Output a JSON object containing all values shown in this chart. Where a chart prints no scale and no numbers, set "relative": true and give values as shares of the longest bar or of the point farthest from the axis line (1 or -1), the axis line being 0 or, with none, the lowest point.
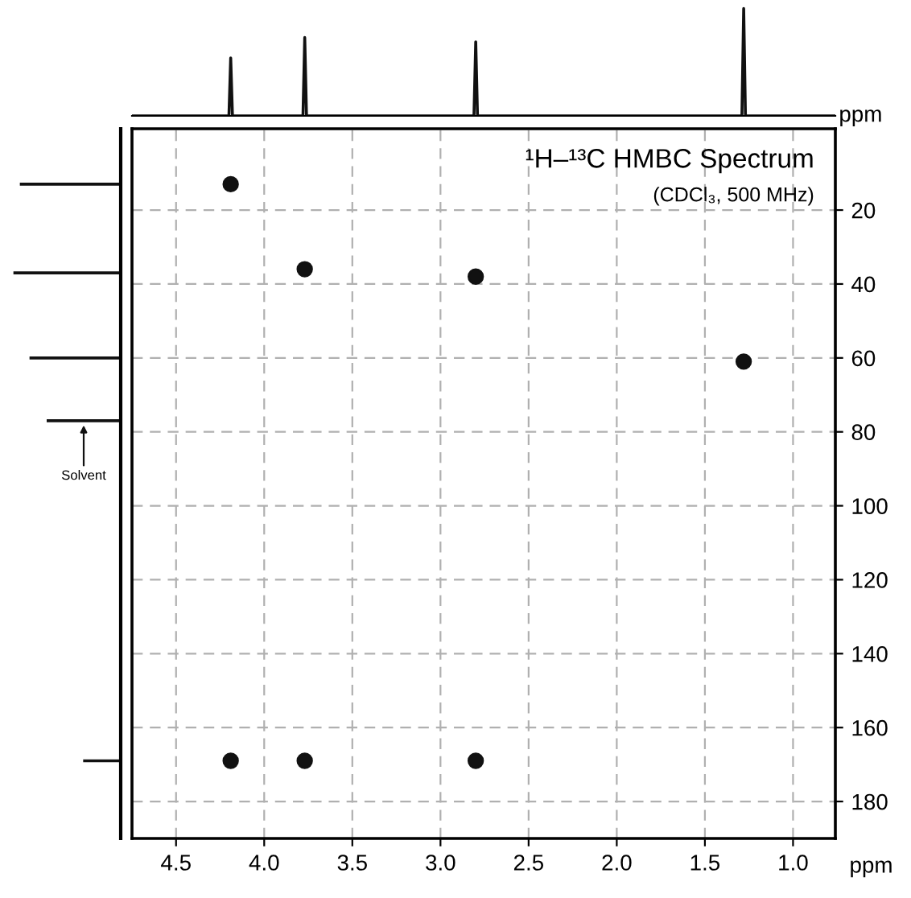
{
  "chart_data": [
    {
      "type": "line",
      "relative": true,
      "xlabel": "ppm",
      "xlim": [
        4.75,
        0.76
      ],
      "tick_labels": false,
      "line_style": "solid",
      "series": [
        {
          "color": "#111111",
          "x": [
            4.75,
            4.2,
            4.19,
            4.18,
            3.78,
            3.77,
            3.76,
            2.81,
            2.8,
            2.79,
            1.29,
            1.28,
            1.27,
            0.76
          ],
          "values": [
            0,
            0,
            0.54,
            0,
            0,
            0.73,
            0,
            0,
            0.69,
            0,
            0,
            1,
            0,
            0
          ]
        }
      ]
    },
    {
      "type": "bar",
      "orientation": "horizontal",
      "relative": true,
      "ylim": [
        190,
        -2
      ],
      "tick_labels": false,
      "x": [
        13,
        37,
        60,
        77,
        169
      ],
      "values": [
        0.94,
        1,
        0.85,
        0.69,
        0.35
      ],
      "color": "#111111",
      "annotations": [
        {
          "text": "Solvent",
          "y": 77
        }
      ]
    },
    {
      "type": "scatter",
      "title": "¹H–¹³C HMBC Spectrum",
      "subtitle": "(CDCl₃, 500 MHz)",
      "xlabel": "ppm",
      "xlim": [
        4.75,
        0.76
      ],
      "ylim": [
        190,
        -2
      ],
      "xticks": [
        4.5,
        {
          "value": 4.0,
          "label": "4.0"
        },
        3.5,
        {
          "value": 3.0,
          "label": "3.0"
        },
        2.5,
        {
          "value": 2.0,
          "label": "2.0"
        },
        1.5,
        {
          "value": 1.0,
          "label": "1.0"
        }
      ],
      "yticks": [
        20,
        40,
        60,
        80,
        100,
        120,
        140,
        160,
        180
      ],
      "grid": true,
      "marker": "circle",
      "series": [
        {
          "color": "#111111",
          "x": [
            4.19,
            3.77,
            2.8,
            1.28,
            4.19,
            3.77,
            2.8
          ],
          "values": [
            13,
            36,
            38,
            61,
            169,
            169,
            169
          ]
        }
      ]
    }
  ]
}
